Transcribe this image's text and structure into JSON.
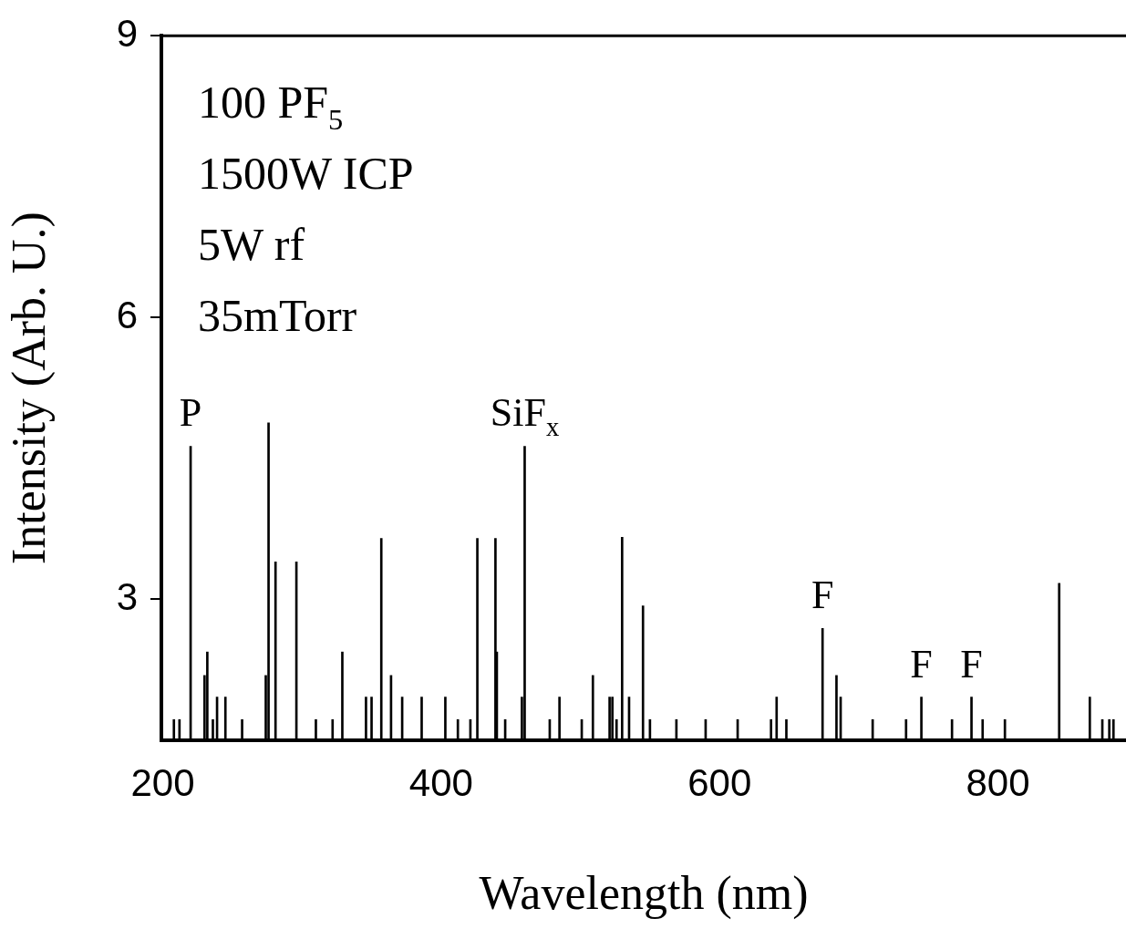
{
  "chart_data": {
    "type": "bar",
    "xlabel": "Wavelength (nm)",
    "ylabel": "Intensity (Arb. U.)",
    "x": [
      208,
      212,
      220,
      230,
      232,
      236,
      239,
      245,
      257,
      274,
      276,
      281,
      296,
      310,
      322,
      329,
      346,
      350,
      357,
      364,
      372,
      386,
      403,
      412,
      421,
      426,
      439,
      440,
      446,
      458,
      460,
      478,
      485,
      501,
      509,
      521,
      523,
      526,
      530,
      535,
      545,
      550,
      569,
      590,
      613,
      637,
      641,
      648,
      674,
      684,
      687,
      710,
      734,
      745,
      767,
      781,
      789,
      805,
      844,
      866,
      875,
      880,
      883
    ],
    "values": [
      1.72,
      1.72,
      4.63,
      2.19,
      2.44,
      1.72,
      1.96,
      1.96,
      1.72,
      2.19,
      4.88,
      3.4,
      3.4,
      1.72,
      1.72,
      2.44,
      1.96,
      1.96,
      3.65,
      2.19,
      1.96,
      1.96,
      1.96,
      1.72,
      1.72,
      3.65,
      3.65,
      2.44,
      1.72,
      1.96,
      4.63,
      1.72,
      1.96,
      1.72,
      2.19,
      1.96,
      1.96,
      1.72,
      3.66,
      1.96,
      2.93,
      1.72,
      1.72,
      1.72,
      1.72,
      1.72,
      1.96,
      1.72,
      2.69,
      2.19,
      1.96,
      1.72,
      1.72,
      1.96,
      1.72,
      1.96,
      1.72,
      1.72,
      3.17,
      1.96,
      1.72,
      1.72,
      1.72
    ],
    "color": "#000000",
    "xlim": [
      199,
      892
    ],
    "xticks": [
      200,
      400,
      600,
      800
    ],
    "ylim": [
      1.5,
      9
    ],
    "yticks": [
      3,
      6,
      9
    ],
    "annotations": [
      "100 PF$_{5}$",
      "1500W ICP",
      "5W rf",
      "35mTorr",
      {
        "text": "P",
        "x": 220,
        "y": 4.63
      },
      {
        "text": "SiF$_{x}$",
        "x": 460,
        "y": 4.63
      },
      {
        "text": "F",
        "x": 674,
        "y": 2.69
      },
      {
        "text": "F",
        "x": 745,
        "y": 1.96
      },
      {
        "text": "F",
        "x": 781,
        "y": 1.96
      }
    ]
  }
}
